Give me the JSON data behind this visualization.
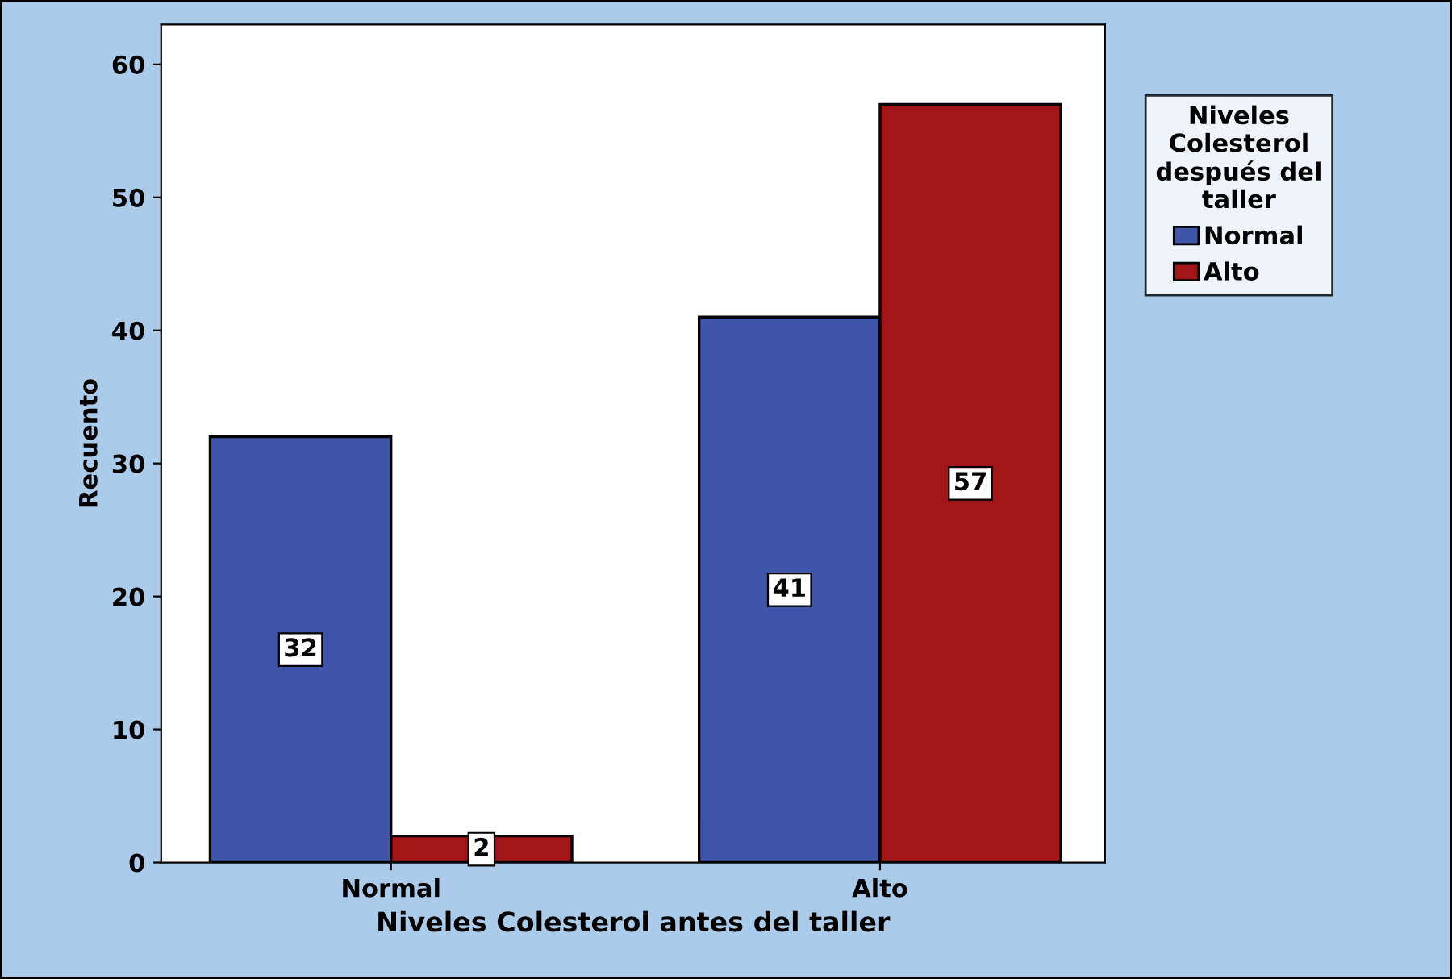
{
  "chart_data": {
    "type": "bar",
    "xlabel": "Niveles Colesterol antes del taller",
    "ylabel": "Recuento",
    "legend_title": "Niveles\nColesterol\ndespués del\ntaller",
    "categories": [
      "Normal",
      "Alto"
    ],
    "series": [
      {
        "name": "Normal",
        "color": "#3f55a9",
        "values": [
          32,
          41
        ]
      },
      {
        "name": "Alto",
        "color": "#a11418",
        "values": [
          2,
          57
        ]
      }
    ],
    "ylim": [
      0,
      63
    ],
    "yticks": [
      0,
      10,
      20,
      30,
      40,
      50,
      60
    ],
    "data_labels": true,
    "legend": "right",
    "grid": false
  }
}
